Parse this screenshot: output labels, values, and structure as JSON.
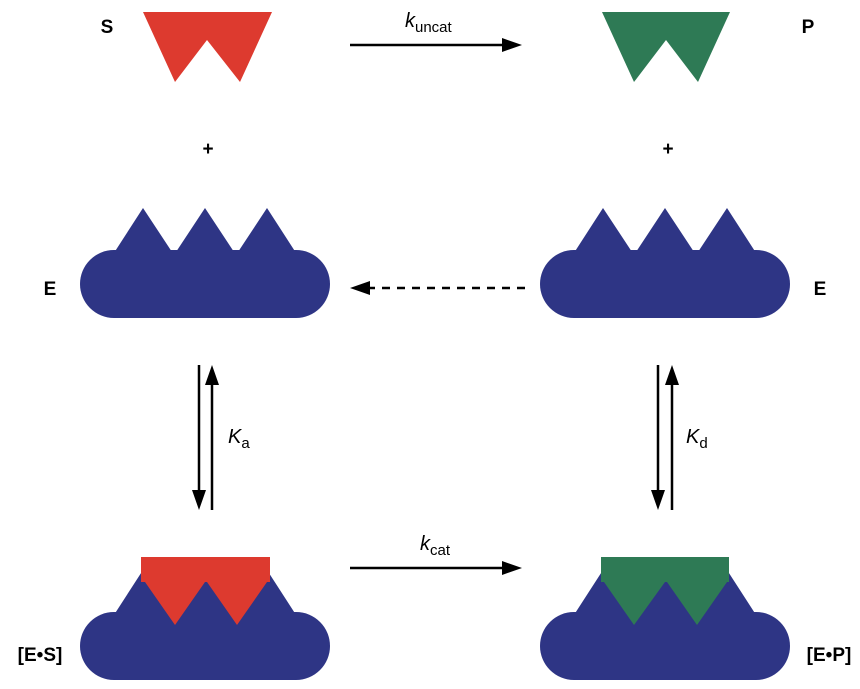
{
  "nodes": [
    {
      "label": "S"
    },
    {
      "label": "P"
    },
    {
      "label": "E"
    },
    {
      "label": "E"
    },
    {
      "label": "[E•S]"
    },
    {
      "label": "[E•P]"
    }
  ],
  "plus_signs": [
    "+",
    "+"
  ],
  "arrows": [
    {
      "symbol": "k",
      "subscript": "uncat"
    },
    {
      "symbol": "K",
      "subscript": "a"
    },
    {
      "symbol": "K",
      "subscript": "d"
    },
    {
      "symbol": "k",
      "subscript": "cat"
    }
  ]
}
